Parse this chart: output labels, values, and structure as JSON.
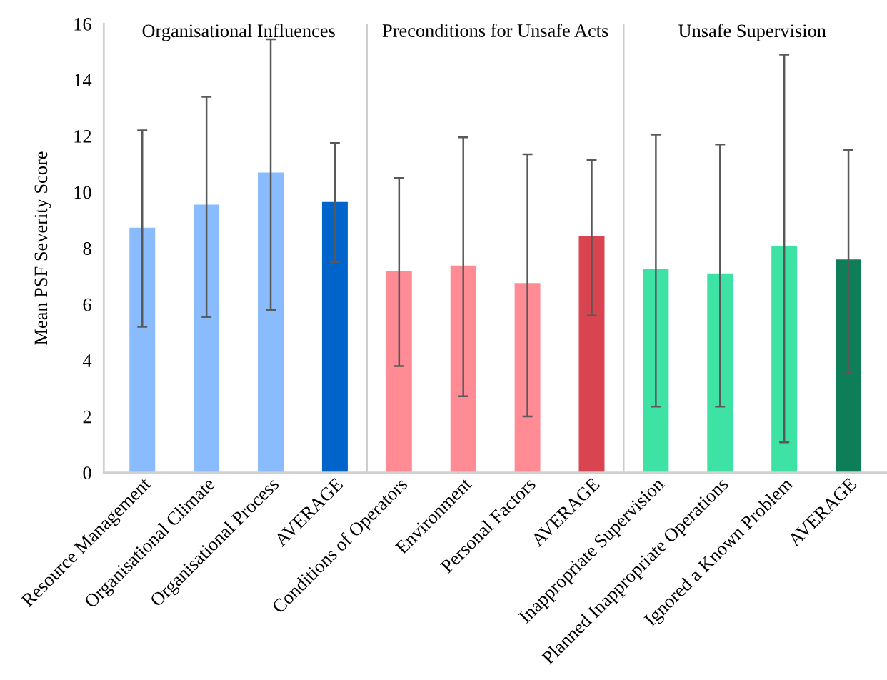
{
  "chart_data": {
    "type": "bar",
    "ylabel": "Mean PSF Severity Score",
    "categories": [
      "Resource Management",
      "Organisational Climate",
      "Organisational Process",
      "AVERAGE",
      "Conditions of Operators",
      "Environment",
      "Personal Factors",
      "AVERAGE",
      "Inappropriate Supervision",
      "Planned Inappropriate Operations",
      "Ignored a Known Problem",
      "AVERAGE"
    ],
    "values": [
      8.73,
      9.55,
      10.7,
      9.65,
      7.2,
      7.38,
      6.76,
      8.43,
      7.27,
      7.1,
      8.07,
      7.6
    ],
    "errors": [
      [
        5.2,
        12.2
      ],
      [
        5.55,
        13.4
      ],
      [
        5.8,
        15.45
      ],
      [
        7.5,
        11.75
      ],
      [
        3.8,
        10.5
      ],
      [
        2.72,
        11.95
      ],
      [
        2.0,
        11.35
      ],
      [
        5.6,
        11.15
      ],
      [
        2.35,
        12.05
      ],
      [
        2.35,
        11.7
      ],
      [
        1.08,
        14.9
      ],
      [
        3.55,
        11.5
      ]
    ],
    "colors": [
      "#8abbfd",
      "#8abbfd",
      "#8abbfd",
      "#0064cb",
      "#ff8b95",
      "#ff8b95",
      "#ff8b95",
      "#d84550",
      "#3fe2a5",
      "#3fe2a5",
      "#3fe2a5",
      "#0d7e58"
    ],
    "ylim": [
      0,
      16
    ],
    "yticks": [
      0,
      2,
      4,
      6,
      8,
      10,
      12,
      14,
      16
    ],
    "grid": false,
    "legend": false,
    "annotations": [
      "Organisational Influences",
      "Preconditions for Unsafe Acts",
      "Unsafe Supervision"
    ]
  }
}
